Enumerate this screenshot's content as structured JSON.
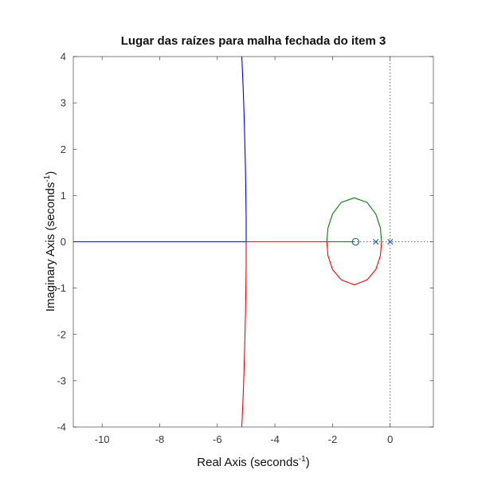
{
  "chart_data": {
    "type": "line",
    "title": "Lugar das raízes para malha fechada do item 3",
    "xlabel": "Real Axis (seconds",
    "xlabel_sup": "-1",
    "xlabel_end": ")",
    "ylabel": "Imaginary Axis (seconds",
    "ylabel_sup": "-1",
    "ylabel_end": ")",
    "xlim": [
      -11,
      1.5
    ],
    "ylim": [
      -4,
      4
    ],
    "x_ticks": [
      -10,
      -8,
      -6,
      -4,
      -2,
      0
    ],
    "x_tick_labels": [
      "-10",
      "-8",
      "-6",
      "-4",
      "-2",
      "0"
    ],
    "y_ticks": [
      -4,
      -3,
      -2,
      -1,
      0,
      1,
      2,
      3,
      4
    ],
    "y_tick_labels": [
      "-4",
      "-3",
      "-2",
      "-1",
      "0",
      "1",
      "2",
      "3",
      "4"
    ],
    "grid": false,
    "series": [
      {
        "color": "#0000ff",
        "points": [
          [
            -11,
            0
          ],
          [
            -5.0,
            0
          ],
          [
            -5.0,
            0.5
          ],
          [
            -5.02,
            1.5
          ],
          [
            -5.06,
            2.5
          ],
          [
            -5.1,
            3.3
          ],
          [
            -5.15,
            4.0
          ]
        ]
      },
      {
        "color": "#ff0000",
        "points": [
          [
            -5.0,
            0
          ],
          [
            -5.0,
            -0.5
          ],
          [
            -5.02,
            -1.5
          ],
          [
            -5.06,
            -2.5
          ],
          [
            -5.1,
            -3.3
          ],
          [
            -5.15,
            -4.0
          ]
        ]
      },
      {
        "color": "#ff0000",
        "points": [
          [
            -5.0,
            0
          ],
          [
            -2.25,
            0
          ]
        ]
      },
      {
        "color": "#008000",
        "points": [
          [
            -2.25,
            0
          ],
          [
            -1.25,
            0
          ]
        ]
      },
      {
        "color": "#ff0000",
        "points": [
          [
            -2.2,
            0
          ],
          [
            -2.16,
            -0.3
          ],
          [
            -2.0,
            -0.6
          ],
          [
            -1.7,
            -0.82
          ],
          [
            -1.25,
            -0.93
          ],
          [
            -0.8,
            -0.82
          ],
          [
            -0.5,
            -0.6
          ],
          [
            -0.34,
            -0.3
          ],
          [
            -0.3,
            0
          ]
        ]
      },
      {
        "color": "#008000",
        "points": [
          [
            -2.2,
            0
          ],
          [
            -2.16,
            0.3
          ],
          [
            -2.0,
            0.6
          ],
          [
            -1.7,
            0.85
          ],
          [
            -1.25,
            0.95
          ],
          [
            -0.8,
            0.85
          ],
          [
            -0.5,
            0.6
          ],
          [
            -0.34,
            0.3
          ],
          [
            -0.3,
            0
          ]
        ]
      }
    ],
    "zeros": [
      [
        -1.2,
        0
      ]
    ],
    "poles": [
      [
        -0.5,
        0
      ],
      [
        0,
        0
      ]
    ],
    "pole_color": "#1f5fb4",
    "zero_color": "#1f5fb4"
  }
}
